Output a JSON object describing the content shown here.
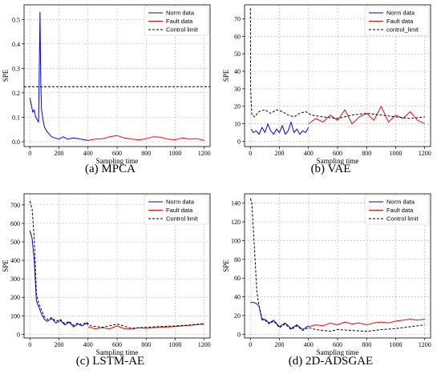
{
  "chart_data": [
    {
      "type": "line",
      "caption": "(a) MPCA",
      "xlabel": "Sampling time",
      "ylabel": "SPE",
      "xlim": [
        -40,
        1240
      ],
      "ylim": [
        -0.02,
        0.56
      ],
      "xticks": [
        0,
        200,
        400,
        600,
        800,
        1000,
        1200
      ],
      "yticks": [
        0.0,
        0.1,
        0.2,
        0.3,
        0.4,
        0.5
      ],
      "ytick_labels": [
        "0.0",
        "0.1",
        "0.2",
        "0.3",
        "0.4",
        "0.5"
      ],
      "grid": true,
      "legend_position": "top-right",
      "series": [
        {
          "name": "Norm data",
          "color": "#0000ff",
          "style": "solid",
          "x": [
            0,
            10,
            20,
            30,
            40,
            50,
            60,
            65,
            70,
            75,
            80,
            90,
            100,
            120,
            150,
            200,
            230,
            260,
            300,
            350,
            400
          ],
          "y": [
            0.18,
            0.15,
            0.12,
            0.13,
            0.1,
            0.09,
            0.08,
            0.3,
            0.53,
            0.25,
            0.13,
            0.09,
            0.06,
            0.04,
            0.02,
            0.01,
            0.02,
            0.01,
            0.015,
            0.01,
            0.005
          ]
        },
        {
          "name": "Fault data",
          "color": "#ff0000",
          "style": "solid",
          "x": [
            400,
            450,
            500,
            550,
            600,
            650,
            700,
            750,
            800,
            850,
            900,
            950,
            1000,
            1050,
            1100,
            1150,
            1200
          ],
          "y": [
            0.005,
            0.01,
            0.012,
            0.02,
            0.025,
            0.015,
            0.01,
            0.008,
            0.012,
            0.02,
            0.018,
            0.01,
            0.008,
            0.015,
            0.01,
            0.012,
            0.005
          ]
        },
        {
          "name": "Control limit",
          "color": "#000000",
          "style": "dashed",
          "x": [
            -40,
            1240
          ],
          "y": [
            0.225,
            0.225
          ]
        }
      ]
    },
    {
      "type": "line",
      "caption": "(b) VAE",
      "xlabel": "Sampling time",
      "ylabel": "SPE",
      "xlim": [
        -40,
        1240
      ],
      "ylim": [
        -3,
        78
      ],
      "xticks": [
        0,
        200,
        400,
        600,
        800,
        1000,
        1200
      ],
      "yticks": [
        0,
        10,
        20,
        30,
        40,
        50,
        60,
        70
      ],
      "ytick_labels": [
        "0",
        "10",
        "20",
        "30",
        "40",
        "50",
        "60",
        "70"
      ],
      "grid": true,
      "legend_position": "top-right",
      "series": [
        {
          "name": "Norm data",
          "color": "#0000ff",
          "style": "solid",
          "x": [
            5,
            20,
            40,
            60,
            80,
            100,
            120,
            140,
            160,
            180,
            200,
            220,
            240,
            260,
            280,
            300,
            320,
            340,
            360,
            380,
            400
          ],
          "y": [
            7,
            5,
            6,
            4,
            8,
            5,
            10,
            6,
            4,
            7,
            5,
            9,
            4,
            6,
            11,
            5,
            7,
            4,
            6,
            5,
            8
          ]
        },
        {
          "name": "Fault data",
          "color": "#ff0000",
          "style": "solid",
          "x": [
            400,
            450,
            500,
            550,
            600,
            650,
            700,
            750,
            800,
            850,
            900,
            950,
            1000,
            1050,
            1100,
            1150,
            1200
          ],
          "y": [
            10,
            13,
            11,
            15,
            12,
            18,
            10,
            14,
            16,
            12,
            20,
            11,
            15,
            13,
            17,
            12,
            10
          ]
        },
        {
          "name": "control_limit",
          "color": "#000000",
          "style": "dashed",
          "x": [
            0,
            2,
            10,
            30,
            60,
            100,
            140,
            180,
            220,
            260,
            300,
            340,
            380,
            420,
            500,
            600,
            700,
            800,
            900,
            1000,
            1100,
            1200
          ],
          "y": [
            76,
            30,
            15,
            14,
            17,
            18,
            16,
            18,
            17,
            15,
            14,
            16,
            17,
            15,
            14,
            13,
            15,
            16,
            15,
            14,
            13,
            14
          ]
        }
      ]
    },
    {
      "type": "line",
      "caption": "(c) LSTM-AE",
      "xlabel": "Sampling time",
      "ylabel": "SPE",
      "xlim": [
        -40,
        1240
      ],
      "ylim": [
        -20,
        760
      ],
      "xticks": [
        0,
        200,
        400,
        600,
        800,
        1000,
        1200
      ],
      "yticks": [
        0,
        100,
        200,
        300,
        400,
        500,
        600,
        700
      ],
      "ytick_labels": [
        "0",
        "100",
        "200",
        "300",
        "400",
        "500",
        "600",
        "700"
      ],
      "grid": true,
      "legend_position": "top-right",
      "series": [
        {
          "name": "Norm data",
          "color": "#0000ff",
          "style": "solid",
          "x": [
            0,
            15,
            30,
            45,
            60,
            80,
            100,
            120,
            150,
            180,
            210,
            240,
            270,
            300,
            330,
            360,
            390,
            400
          ],
          "y": [
            560,
            520,
            400,
            180,
            150,
            110,
            80,
            70,
            85,
            60,
            75,
            50,
            65,
            40,
            55,
            45,
            60,
            50
          ]
        },
        {
          "name": "Fault data",
          "color": "#ff0000",
          "style": "solid",
          "x": [
            400,
            450,
            500,
            550,
            600,
            650,
            700,
            750,
            800,
            850,
            900,
            950,
            1000,
            1050,
            1100,
            1150,
            1200
          ],
          "y": [
            40,
            30,
            35,
            30,
            45,
            30,
            28,
            35,
            32,
            35,
            38,
            40,
            42,
            45,
            48,
            52,
            55
          ]
        },
        {
          "name": "Control limit",
          "color": "#000000",
          "style": "dashed",
          "x": [
            0,
            15,
            30,
            45,
            60,
            80,
            100,
            120,
            150,
            180,
            210,
            240,
            270,
            300,
            330,
            360,
            390,
            420,
            500,
            600,
            700,
            800,
            900,
            1000,
            1100,
            1200
          ],
          "y": [
            720,
            680,
            520,
            220,
            170,
            130,
            95,
            80,
            90,
            70,
            80,
            58,
            70,
            48,
            60,
            52,
            65,
            45,
            38,
            55,
            32,
            38,
            42,
            45,
            50,
            58
          ]
        }
      ]
    },
    {
      "type": "line",
      "caption": "(d) 2D-ADSGAE",
      "xlabel": "Sampling time",
      "ylabel": "SPE",
      "xlim": [
        -40,
        1240
      ],
      "ylim": [
        -4,
        150
      ],
      "xticks": [
        0,
        200,
        400,
        600,
        800,
        1000,
        1200
      ],
      "yticks": [
        0,
        20,
        40,
        60,
        80,
        100,
        120,
        140
      ],
      "ytick_labels": [
        "0",
        "20",
        "40",
        "60",
        "80",
        "100",
        "120",
        "140"
      ],
      "grid": true,
      "legend_position": "top-right",
      "series": [
        {
          "name": "Norm data",
          "color": "#0000ff",
          "style": "solid",
          "x": [
            0,
            20,
            40,
            60,
            80,
            100,
            130,
            160,
            200,
            240,
            280,
            320,
            360,
            400
          ],
          "y": [
            34,
            34,
            33,
            30,
            15,
            16,
            12,
            15,
            8,
            12,
            6,
            10,
            5,
            9
          ]
        },
        {
          "name": "Fault data",
          "color": "#ff0000",
          "style": "solid",
          "x": [
            400,
            450,
            500,
            550,
            600,
            650,
            700,
            750,
            800,
            850,
            900,
            950,
            1000,
            1050,
            1100,
            1150,
            1200
          ],
          "y": [
            8,
            10,
            9,
            12,
            10,
            13,
            11,
            12,
            10,
            12,
            13,
            12,
            14,
            15,
            16,
            15,
            16
          ]
        },
        {
          "name": "Control limit",
          "color": "#000000",
          "style": "dashed",
          "x": [
            0,
            10,
            25,
            45,
            60,
            80,
            100,
            130,
            160,
            200,
            240,
            280,
            320,
            360,
            400,
            450,
            500,
            550,
            600,
            700,
            800,
            900,
            1000,
            1100,
            1200
          ],
          "y": [
            145,
            140,
            100,
            45,
            30,
            17,
            15,
            11,
            14,
            7,
            11,
            5,
            9,
            4,
            7,
            5,
            4,
            3,
            5,
            4,
            3,
            5,
            6,
            8,
            10
          ]
        }
      ]
    }
  ]
}
